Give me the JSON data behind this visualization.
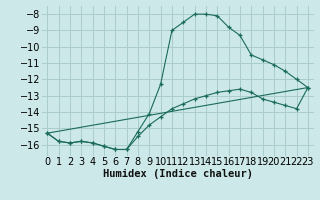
{
  "xlabel": "Humidex (Indice chaleur)",
  "bg_color": "#cce8e8",
  "grid_color": "#aacccc",
  "line_color": "#1a6b5a",
  "xlim": [
    -0.5,
    23.5
  ],
  "ylim": [
    -16.7,
    -7.5
  ],
  "xticks": [
    0,
    1,
    2,
    3,
    4,
    5,
    6,
    7,
    8,
    9,
    10,
    11,
    12,
    13,
    14,
    15,
    16,
    17,
    18,
    19,
    20,
    21,
    22,
    23
  ],
  "yticks": [
    -8,
    -9,
    -10,
    -11,
    -12,
    -13,
    -14,
    -15,
    -16
  ],
  "series1_x": [
    0,
    1,
    2,
    3,
    4,
    5,
    6,
    7,
    8,
    9,
    10,
    11,
    12,
    13,
    14,
    15,
    16,
    17,
    18,
    19,
    20,
    21,
    22,
    23
  ],
  "series1_y": [
    -15.3,
    -15.8,
    -15.9,
    -15.8,
    -15.9,
    -16.1,
    -16.3,
    -16.3,
    -15.2,
    -14.1,
    -12.3,
    -9.0,
    -8.5,
    -8.0,
    -8.0,
    -8.1,
    -8.8,
    -9.3,
    -10.5,
    -10.8,
    -11.1,
    -11.5,
    -12.0,
    -12.5
  ],
  "series2_x": [
    0,
    23
  ],
  "series2_y": [
    -15.3,
    -12.5
  ],
  "series3_x": [
    0,
    1,
    2,
    3,
    4,
    5,
    6,
    7,
    8,
    9,
    10,
    11,
    12,
    13,
    14,
    15,
    16,
    17,
    18,
    19,
    20,
    21,
    22,
    23
  ],
  "series3_y": [
    -15.3,
    -15.8,
    -15.9,
    -15.8,
    -15.9,
    -16.1,
    -16.3,
    -16.3,
    -15.5,
    -14.8,
    -14.3,
    -13.8,
    -13.5,
    -13.2,
    -13.0,
    -12.8,
    -12.7,
    -12.6,
    -12.8,
    -13.2,
    -13.4,
    -13.6,
    -13.8,
    -12.5
  ],
  "xlabel_fontsize": 7.5,
  "tick_fontsize": 7
}
